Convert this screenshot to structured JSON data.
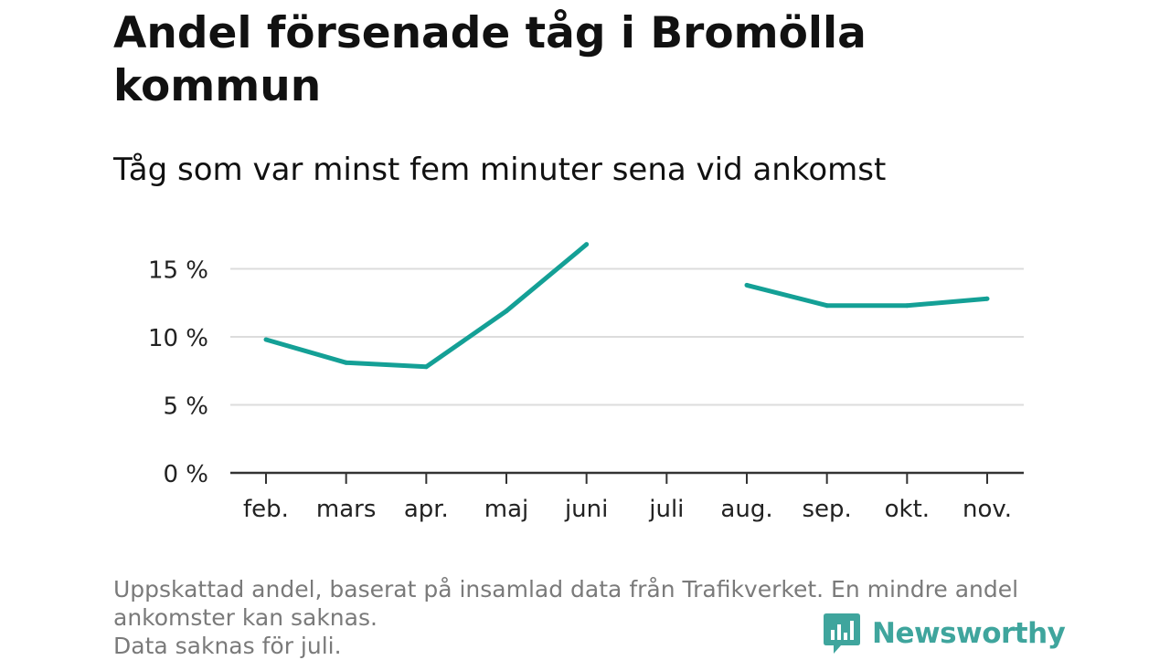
{
  "title": "Andel försenade tåg i Bromölla kommun",
  "subtitle": "Tåg som var minst fem minuter sena vid ankomst",
  "footnote": {
    "line1": "Uppskattad andel, baserat på insamlad data från Trafikverket. En mindre andel",
    "line2": "ankomster kan saknas.",
    "line3": "Data saknas för juli."
  },
  "brand": {
    "name": "Newsworthy",
    "icon": "newsworthy-logo-icon",
    "color": "#3fa59d"
  },
  "colors": {
    "line": "#14a096",
    "grid": "#dcdcdc",
    "axis": "#333333"
  },
  "chart_data": {
    "type": "line",
    "categories": [
      "feb.",
      "mars",
      "apr.",
      "maj",
      "juni",
      "juli",
      "aug.",
      "sep.",
      "okt.",
      "nov."
    ],
    "series": [
      {
        "values": [
          9.8,
          8.1,
          7.8,
          11.9,
          16.8,
          null,
          13.8,
          12.3,
          12.3,
          12.8
        ]
      }
    ],
    "ylim": [
      0,
      17
    ],
    "yticks": [
      0,
      5,
      10,
      15
    ],
    "ytick_labels": [
      "0 %",
      "5 %",
      "10 %",
      "15 %"
    ],
    "grid": true,
    "legend": "none"
  }
}
